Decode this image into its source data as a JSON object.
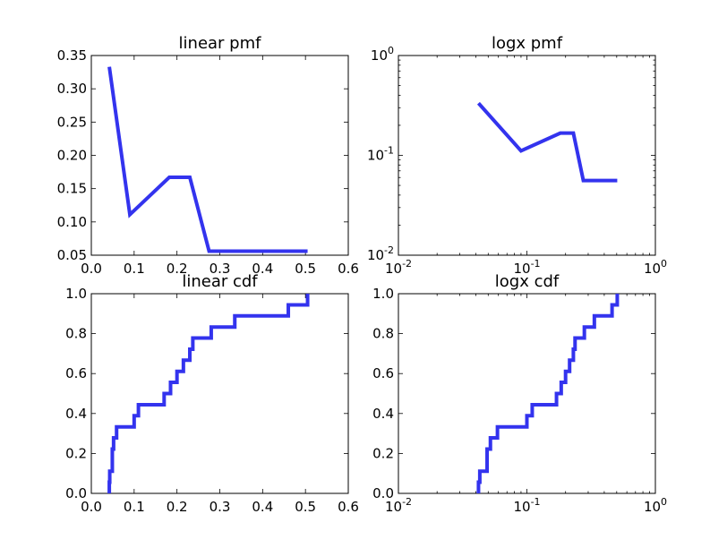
{
  "colors": {
    "series": "#3333ee"
  },
  "chart_data": [
    {
      "type": "line",
      "title": "linear pmf",
      "xscale": "linear",
      "yscale": "linear",
      "xlim": [
        0,
        0.6
      ],
      "ylim": [
        0.05,
        0.35
      ],
      "xticks": [
        0,
        0.1,
        0.2,
        0.3,
        0.4,
        0.5,
        0.6
      ],
      "xtick_labels": [
        "0.0",
        "0.1",
        "0.2",
        "0.3",
        "0.4",
        "0.5",
        "0.6"
      ],
      "yticks": [
        0.05,
        0.1,
        0.15,
        0.2,
        0.25,
        0.3,
        0.35
      ],
      "ytick_labels": [
        "0.05",
        "0.10",
        "0.15",
        "0.20",
        "0.25",
        "0.30",
        "0.35"
      ],
      "grid": false,
      "series": [
        {
          "x": [
            0.042,
            0.09,
            0.182,
            0.23,
            0.275,
            0.505
          ],
          "y": [
            0.333,
            0.111,
            0.167,
            0.167,
            0.056,
            0.056
          ]
        }
      ]
    },
    {
      "type": "line",
      "title": "logx pmf",
      "xscale": "log",
      "yscale": "log",
      "xlim": [
        0.01,
        1
      ],
      "ylim": [
        0.01,
        1
      ],
      "xticks": [
        0.01,
        0.1,
        1
      ],
      "xtick_labels": [
        {
          "base": "10",
          "exp": "-2"
        },
        {
          "base": "10",
          "exp": "-1"
        },
        {
          "base": "10",
          "exp": "0"
        }
      ],
      "yticks": [
        0.01,
        0.1,
        1
      ],
      "ytick_labels": [
        {
          "base": "10",
          "exp": "-2"
        },
        {
          "base": "10",
          "exp": "-1"
        },
        {
          "base": "10",
          "exp": "0"
        }
      ],
      "grid": false,
      "series": [
        {
          "x": [
            0.042,
            0.09,
            0.182,
            0.23,
            0.275,
            0.505
          ],
          "y": [
            0.333,
            0.111,
            0.167,
            0.167,
            0.056,
            0.056
          ]
        }
      ]
    },
    {
      "type": "line",
      "title": "linear cdf",
      "xscale": "linear",
      "yscale": "linear",
      "step": true,
      "xlim": [
        0,
        0.6
      ],
      "ylim": [
        0,
        1
      ],
      "xticks": [
        0,
        0.1,
        0.2,
        0.3,
        0.4,
        0.5,
        0.6
      ],
      "xtick_labels": [
        "0.0",
        "0.1",
        "0.2",
        "0.3",
        "0.4",
        "0.5",
        "0.6"
      ],
      "yticks": [
        0,
        0.2,
        0.4,
        0.6,
        0.8,
        1.0
      ],
      "ytick_labels": [
        "0.0",
        "0.2",
        "0.4",
        "0.6",
        "0.8",
        "1.0"
      ],
      "grid": false,
      "series": [
        {
          "x": [
            0.042,
            0.042,
            0.043,
            0.049,
            0.052,
            0.059,
            0.1,
            0.11,
            0.17,
            0.185,
            0.2,
            0.215,
            0.23,
            0.237,
            0.28,
            0.335,
            0.46,
            0.505
          ],
          "y": [
            0.0,
            0.056,
            0.111,
            0.222,
            0.278,
            0.333,
            0.389,
            0.444,
            0.5,
            0.556,
            0.611,
            0.667,
            0.722,
            0.778,
            0.833,
            0.889,
            0.944,
            1.0
          ]
        }
      ]
    },
    {
      "type": "line",
      "title": "logx cdf",
      "xscale": "log",
      "yscale": "linear",
      "step": true,
      "xlim": [
        0.01,
        1
      ],
      "ylim": [
        0,
        1
      ],
      "xticks": [
        0.01,
        0.1,
        1
      ],
      "xtick_labels": [
        {
          "base": "10",
          "exp": "-2"
        },
        {
          "base": "10",
          "exp": "-1"
        },
        {
          "base": "10",
          "exp": "0"
        }
      ],
      "yticks": [
        0,
        0.2,
        0.4,
        0.6,
        0.8,
        1.0
      ],
      "ytick_labels": [
        "0.0",
        "0.2",
        "0.4",
        "0.6",
        "0.8",
        "1.0"
      ],
      "grid": false,
      "series": [
        {
          "x": [
            0.042,
            0.042,
            0.043,
            0.049,
            0.052,
            0.059,
            0.1,
            0.11,
            0.17,
            0.185,
            0.2,
            0.215,
            0.23,
            0.237,
            0.28,
            0.335,
            0.46,
            0.505
          ],
          "y": [
            0.0,
            0.056,
            0.111,
            0.222,
            0.278,
            0.333,
            0.389,
            0.444,
            0.5,
            0.556,
            0.611,
            0.667,
            0.722,
            0.778,
            0.833,
            0.889,
            0.944,
            1.0
          ]
        }
      ]
    }
  ]
}
